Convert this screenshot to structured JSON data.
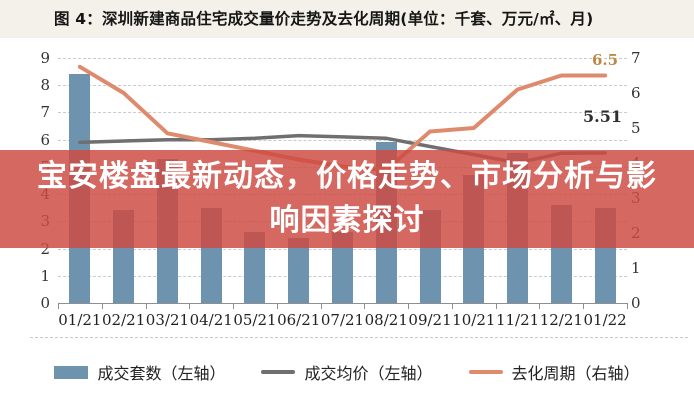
{
  "title_bar": {
    "text": "图 4：深圳新建商品住宅成交量价走势及去化周期(单位：千套、万元/㎡、月)"
  },
  "overlay_banner": {
    "text": "宝安楼盘最新动态，价格走势、市场分析与影\n响因素探讨"
  },
  "colors": {
    "bar": "#6e93ae",
    "price_line": "#6f6f6f",
    "cycle_line": "#de8a6d",
    "banner_bg": "rgba(205,75,66,0.84)",
    "banner_text": "#ffffff",
    "grid": "#cbcbcb",
    "axis": "#8f8f8f",
    "tick_text": "#333333"
  },
  "chart_data": {
    "type": "bar+line",
    "title": "深圳新建商品住宅成交量价走势及去化周期",
    "units": "千套、万元/㎡、月",
    "categories": [
      "01/21",
      "02/21",
      "03/21",
      "04/21",
      "05/21",
      "06/21",
      "07/21",
      "08/21",
      "09/21",
      "10/21",
      "11/21",
      "12/21",
      "01/22"
    ],
    "series": [
      {
        "name": "成交套数（左轴）",
        "kind": "bar",
        "axis": "left",
        "color_key": "bar",
        "values": [
          8.4,
          3.4,
          5.3,
          3.5,
          2.6,
          2.4,
          2.6,
          5.9,
          3.4,
          4.7,
          5.5,
          3.6,
          3.5
        ]
      },
      {
        "name": "成交均价（左轴）",
        "kind": "line",
        "axis": "left",
        "color_key": "price_line",
        "values": [
          5.9,
          5.95,
          6.0,
          6.0,
          6.05,
          6.15,
          6.1,
          6.05,
          5.75,
          5.45,
          5.15,
          5.5,
          5.51
        ]
      },
      {
        "name": "去化周期（右轴）",
        "kind": "line",
        "axis": "right",
        "color_key": "cycle_line",
        "values": [
          6.75,
          6.0,
          4.85,
          4.6,
          4.35,
          4.1,
          3.9,
          3.8,
          4.9,
          5.0,
          6.1,
          6.5,
          6.5
        ]
      }
    ],
    "left_axis": {
      "min": 0,
      "max": 9,
      "tick_labels": [
        "0",
        "1",
        "2",
        "3",
        "4",
        "5",
        "6",
        "7",
        "8",
        "9"
      ]
    },
    "right_axis": {
      "min": 0,
      "max": 7,
      "tick_labels": [
        "0",
        "1",
        "2",
        "3",
        "4",
        "5",
        "6",
        "7"
      ]
    },
    "grid": "horizontal-dashed",
    "legend_position": "bottom",
    "annotations": [
      {
        "text": "6.5",
        "x": 592,
        "y": 51,
        "color": "#bd8a45",
        "size": 15
      },
      {
        "text": "5.51",
        "x": 583,
        "y": 107,
        "color": "#2f2f2f",
        "size": 16
      }
    ]
  },
  "legend": {
    "items": [
      {
        "label": "成交套数（左轴）",
        "swatch": "rect",
        "color_key": "bar"
      },
      {
        "label": "成交均价（左轴）",
        "swatch": "line",
        "color_key": "price_line"
      },
      {
        "label": "去化周期（右轴）",
        "swatch": "line",
        "color_key": "cycle_line"
      }
    ]
  }
}
